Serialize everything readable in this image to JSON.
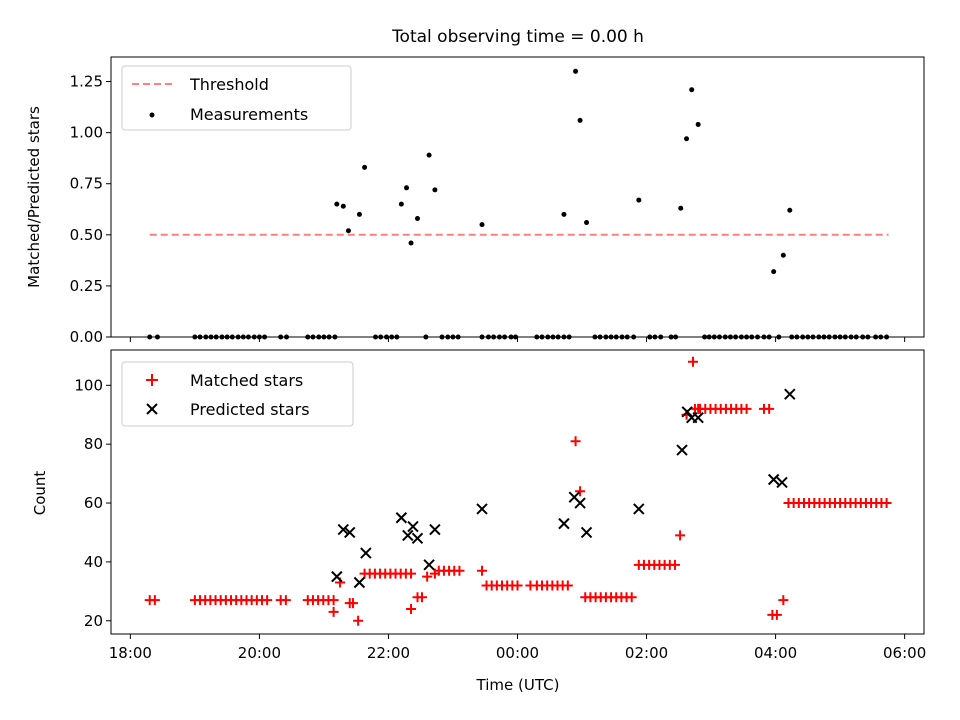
{
  "figure": {
    "title": "Total observing time = 0.00 h",
    "shared_xlabel": "Time (UTC)"
  },
  "chart_data": [
    {
      "type": "scatter",
      "ylabel": "Matched/Predicted stars",
      "ylim": [
        0,
        1.37
      ],
      "yticks": [
        "0.00",
        "0.25",
        "0.50",
        "0.75",
        "1.00",
        "1.25"
      ],
      "xlim_hours": [
        17.7,
        30.3
      ],
      "grid": false,
      "legend_position": "upper left",
      "legend": {
        "threshold": "Threshold",
        "measurements": "Measurements"
      },
      "threshold": {
        "name": "Threshold",
        "value": 0.5,
        "x_from_hours": 18.3,
        "x_to_hours": 29.75,
        "color": "#ff7f7f"
      },
      "measurements_nonzero": [
        [
          21.2,
          0.65
        ],
        [
          21.3,
          0.64
        ],
        [
          21.38,
          0.52
        ],
        [
          21.55,
          0.6
        ],
        [
          21.63,
          0.83
        ],
        [
          22.2,
          0.65
        ],
        [
          22.28,
          0.73
        ],
        [
          22.35,
          0.46
        ],
        [
          22.45,
          0.58
        ],
        [
          22.63,
          0.89
        ],
        [
          22.72,
          0.72
        ],
        [
          23.45,
          0.55
        ],
        [
          24.72,
          0.6
        ],
        [
          24.9,
          1.3
        ],
        [
          24.97,
          1.06
        ],
        [
          25.07,
          0.56
        ],
        [
          25.88,
          0.67
        ],
        [
          26.53,
          0.63
        ],
        [
          26.62,
          0.97
        ],
        [
          26.7,
          1.21
        ],
        [
          26.8,
          1.04
        ],
        [
          27.97,
          0.32
        ],
        [
          28.12,
          0.4
        ],
        [
          28.22,
          0.62
        ]
      ],
      "measurements_zero_x": [
        18.3,
        18.42,
        19.0,
        19.08,
        19.17,
        19.25,
        19.33,
        19.42,
        19.5,
        19.58,
        19.67,
        19.75,
        19.83,
        19.92,
        20.0,
        20.08,
        20.33,
        20.42,
        20.75,
        20.83,
        20.92,
        21.0,
        21.08,
        21.17,
        21.8,
        21.88,
        21.97,
        22.05,
        22.13,
        22.58,
        22.83,
        22.92,
        23.0,
        23.08,
        23.45,
        23.55,
        23.63,
        23.72,
        23.8,
        23.9,
        23.97,
        24.3,
        24.38,
        24.47,
        24.55,
        24.63,
        24.72,
        24.8,
        25.2,
        25.28,
        25.37,
        25.45,
        25.53,
        25.62,
        25.7,
        25.8,
        26.05,
        26.13,
        26.22,
        26.38,
        26.45,
        26.9,
        26.97,
        27.05,
        27.13,
        27.22,
        27.3,
        27.38,
        27.47,
        27.55,
        27.63,
        27.72,
        27.82,
        27.9,
        28.05,
        28.25,
        28.33,
        28.42,
        28.5,
        28.58,
        28.67,
        28.75,
        28.83,
        28.92,
        29.0,
        29.08,
        29.17,
        29.25,
        29.35,
        29.43,
        29.55,
        29.63,
        29.72
      ],
      "colors": {
        "measurements": "#000000",
        "threshold": "#ff7f7f"
      }
    },
    {
      "type": "scatter",
      "ylabel": "Count",
      "xlabel": "Time (UTC)",
      "ylim": [
        15.5,
        112
      ],
      "yticks": [
        "20",
        "40",
        "60",
        "80",
        "100"
      ],
      "xlim_hours": [
        17.7,
        30.3
      ],
      "xtick_hours": [
        18,
        20,
        22,
        24,
        26,
        28,
        30
      ],
      "xtick_labels": [
        "18:00",
        "20:00",
        "22:00",
        "00:00",
        "02:00",
        "04:00",
        "06:00"
      ],
      "grid": false,
      "legend_position": "upper left",
      "legend": {
        "matched": "Matched stars",
        "predicted": "Predicted stars"
      },
      "matched_segments": [
        {
          "from": 18.3,
          "to": 18.45,
          "step": 0.08,
          "y": 27
        },
        {
          "from": 19.0,
          "to": 20.12,
          "step": 0.08,
          "y": 27
        },
        {
          "from": 20.33,
          "to": 20.45,
          "step": 0.08,
          "y": 27
        },
        {
          "from": 20.75,
          "to": 21.17,
          "step": 0.08,
          "y": 27
        },
        {
          "from": 21.63,
          "to": 22.35,
          "step": 0.08,
          "y": 36
        },
        {
          "from": 22.78,
          "to": 23.12,
          "step": 0.08,
          "y": 37
        },
        {
          "from": 23.52,
          "to": 24.0,
          "step": 0.08,
          "y": 32
        },
        {
          "from": 24.3,
          "to": 24.82,
          "step": 0.08,
          "y": 32
        },
        {
          "from": 25.05,
          "to": 25.82,
          "step": 0.08,
          "y": 28
        },
        {
          "from": 25.88,
          "to": 26.45,
          "step": 0.08,
          "y": 39
        },
        {
          "from": 26.75,
          "to": 27.62,
          "step": 0.08,
          "y": 92
        },
        {
          "from": 27.82,
          "to": 27.9,
          "step": 0.08,
          "y": 92
        },
        {
          "from": 28.2,
          "to": 29.75,
          "step": 0.08,
          "y": 60
        }
      ],
      "matched_individual": [
        [
          21.15,
          23
        ],
        [
          21.25,
          33
        ],
        [
          21.4,
          26
        ],
        [
          21.45,
          26
        ],
        [
          21.53,
          20
        ],
        [
          22.35,
          24
        ],
        [
          22.45,
          28
        ],
        [
          22.52,
          28
        ],
        [
          22.6,
          35
        ],
        [
          22.72,
          36
        ],
        [
          23.45,
          37
        ],
        [
          24.2,
          32
        ],
        [
          24.9,
          81
        ],
        [
          24.97,
          64
        ],
        [
          26.52,
          49
        ],
        [
          26.62,
          90
        ],
        [
          26.72,
          108
        ],
        [
          26.8,
          92
        ],
        [
          27.95,
          22
        ],
        [
          28.02,
          22
        ],
        [
          28.12,
          27
        ]
      ],
      "predicted_stars": [
        [
          21.2,
          35
        ],
        [
          21.3,
          51
        ],
        [
          21.4,
          50
        ],
        [
          21.55,
          33
        ],
        [
          21.65,
          43
        ],
        [
          22.2,
          55
        ],
        [
          22.3,
          49
        ],
        [
          22.38,
          52
        ],
        [
          22.45,
          48
        ],
        [
          22.63,
          39
        ],
        [
          22.72,
          51
        ],
        [
          23.45,
          58
        ],
        [
          24.72,
          53
        ],
        [
          24.88,
          62
        ],
        [
          24.97,
          60
        ],
        [
          25.07,
          50
        ],
        [
          25.88,
          58
        ],
        [
          26.55,
          78
        ],
        [
          26.63,
          91
        ],
        [
          26.7,
          89
        ],
        [
          26.8,
          89
        ],
        [
          27.97,
          68
        ],
        [
          28.1,
          67
        ],
        [
          28.22,
          97
        ]
      ],
      "colors": {
        "matched": "#ff0000",
        "predicted": "#000000"
      }
    }
  ]
}
